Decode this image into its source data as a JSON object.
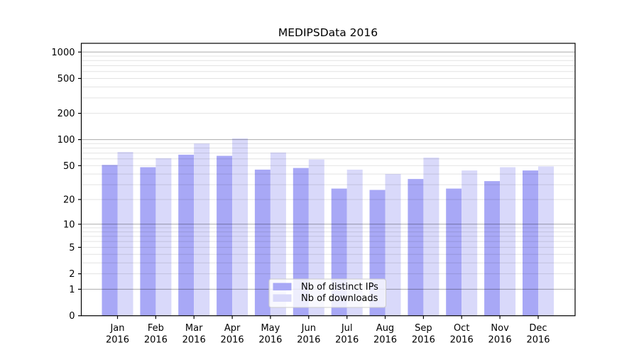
{
  "chart_data": {
    "type": "bar",
    "title": "MEDIPSData 2016",
    "yscale": "log1p",
    "ylim": [
      0,
      1264
    ],
    "grid": "horizontal major (1,10,100,1000) + minor log lines",
    "legend_position": "lower center",
    "categories": [
      "Jan",
      "Feb",
      "Mar",
      "Apr",
      "May",
      "Jun",
      "Jul",
      "Aug",
      "Sep",
      "Oct",
      "Nov",
      "Dec"
    ],
    "x_tick_year_line": "2016",
    "y_ticks": [
      0,
      1,
      2,
      5,
      10,
      20,
      50,
      100,
      200,
      500,
      1000
    ],
    "series": [
      {
        "name": "Nb of distinct IPs",
        "color": "#a8a8f6",
        "values": [
          51,
          48,
          67,
          65,
          45,
          47,
          27,
          26,
          35,
          27,
          33,
          44
        ]
      },
      {
        "name": "Nb of downloads",
        "color": "#d9d9fa",
        "values": [
          72,
          61,
          90,
          103,
          71,
          59,
          45,
          40,
          62,
          44,
          48,
          49
        ]
      }
    ]
  },
  "colors": {
    "background": "#ffffff",
    "text": "#000000",
    "spine": "#000000",
    "grid_major": "rgba(0,0,0,0.33)",
    "grid_minor": "rgba(0,0,0,0.11)",
    "legend_background": "rgba(255,255,255,0.8)",
    "legend_border": "#cccccc"
  }
}
